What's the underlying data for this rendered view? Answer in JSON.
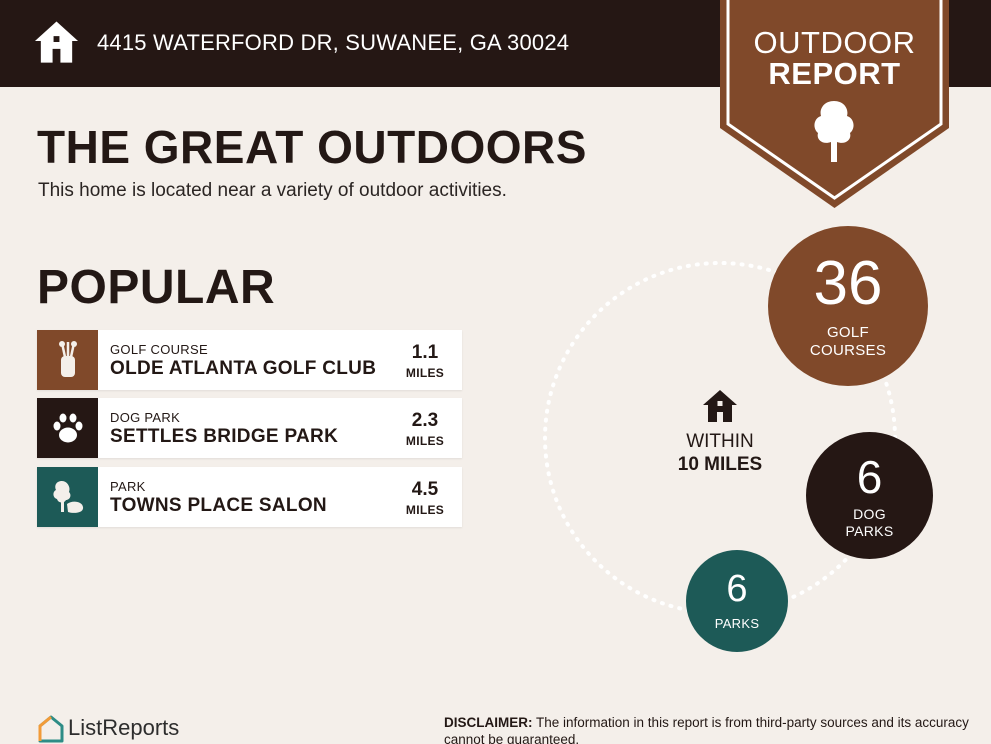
{
  "header": {
    "address": "4415 WATERFORD DR, SUWANEE, GA 30024",
    "home_icon": "house-icon",
    "background": "#251714"
  },
  "badge": {
    "line1": "OUTDOOR",
    "line2": "REPORT",
    "icon": "tree-icon",
    "color": "#80492a"
  },
  "intro": {
    "title": "THE GREAT OUTDOORS",
    "subtitle": "This home is located near a variety of outdoor activities."
  },
  "popular": {
    "title": "POPULAR",
    "items": [
      {
        "category": "GOLF COURSE",
        "name": "OLDE ATLANTA GOLF CLUB",
        "distance": "1.1",
        "unit": "MILES",
        "icon": "golf-bag-icon",
        "color": "#80492a"
      },
      {
        "category": "DOG PARK",
        "name": "SETTLES BRIDGE PARK",
        "distance": "2.3",
        "unit": "MILES",
        "icon": "paw-icon",
        "color": "#251714"
      },
      {
        "category": "PARK",
        "name": "TOWNS PLACE SALON",
        "distance": "4.5",
        "unit": "MILES",
        "icon": "park-tree-icon",
        "color": "#1d5a57"
      }
    ]
  },
  "summary": {
    "within_line1": "WITHIN",
    "within_line2": "10 MILES",
    "golf": {
      "count": "36",
      "label1": "GOLF",
      "label2": "COURSES",
      "color": "#80492a"
    },
    "dog": {
      "count": "6",
      "label1": "DOG",
      "label2": "PARKS",
      "color": "#251714"
    },
    "parks": {
      "count": "6",
      "label1": "PARKS",
      "color": "#1d5a57"
    }
  },
  "footer": {
    "brand": "ListReports",
    "logo_icon": "listreports-logo-icon",
    "disclaimer_label": "DISCLAIMER:",
    "disclaimer_text": " The information in this report is from third-party sources and its accuracy cannot be guaranteed."
  }
}
